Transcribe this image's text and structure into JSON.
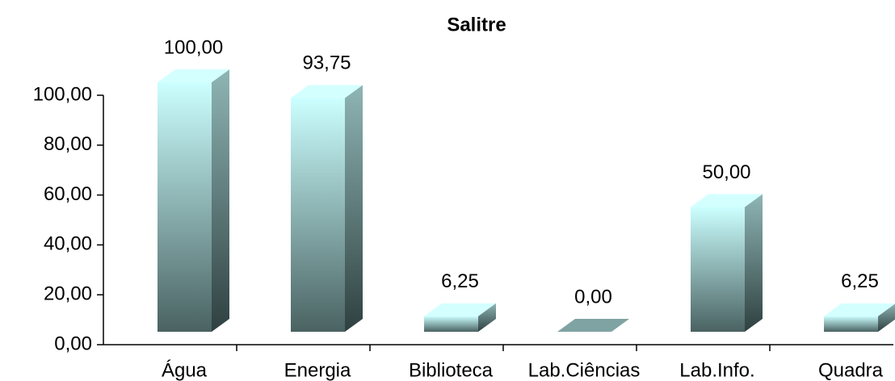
{
  "chart_data": {
    "type": "bar3d",
    "title": "Salitre",
    "categories": [
      "Água",
      "Energia",
      "Biblioteca",
      "Lab.Ciências",
      "Lab.Info.",
      "Quadra"
    ],
    "values": [
      100,
      93.75,
      6.25,
      0,
      50,
      6.25
    ],
    "value_labels": [
      "100,00",
      "93,75",
      "6,25",
      "0,00",
      "50,00",
      "6,25"
    ],
    "color": "#ccffff",
    "ylim": [
      0,
      100
    ],
    "yticks": [
      {
        "value": 0,
        "label": "0,00"
      },
      {
        "value": 20,
        "label": "20,00"
      },
      {
        "value": 40,
        "label": "40,00"
      },
      {
        "value": 60,
        "label": "60,00"
      },
      {
        "value": 80,
        "label": "80,00"
      },
      {
        "value": 100,
        "label": "100,00"
      }
    ],
    "grid": false
  }
}
